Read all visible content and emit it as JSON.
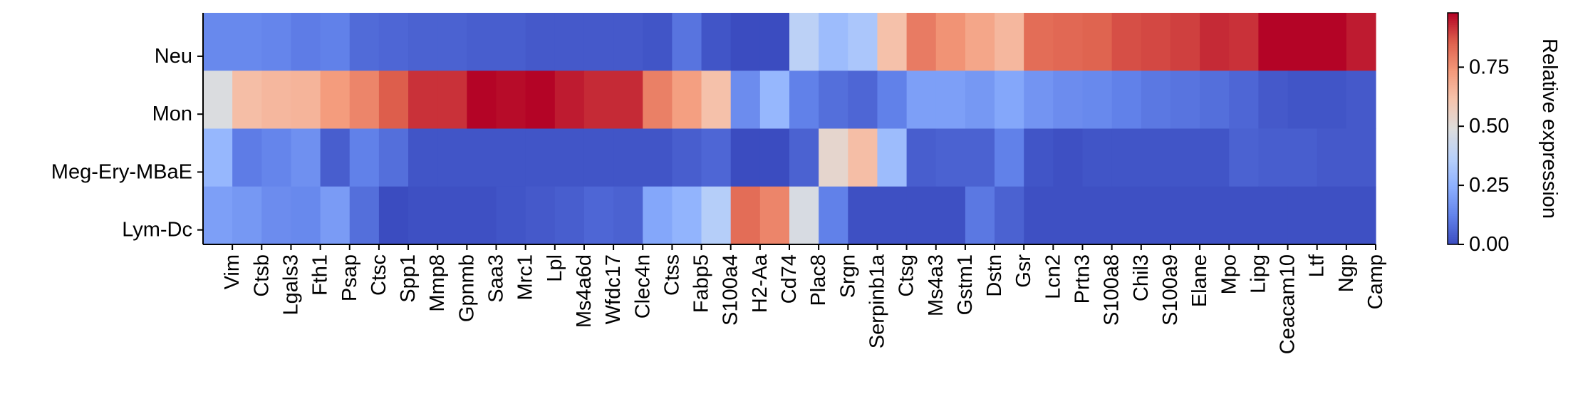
{
  "chart_data": {
    "type": "heatmap",
    "rows": [
      "Neu",
      "Mon",
      "Meg-Ery-MBaE",
      "Lym-Dc"
    ],
    "columns": [
      "Vim",
      "Ctsb",
      "Lgals3",
      "Fth1",
      "Psap",
      "Ctsc",
      "Spp1",
      "Mmp8",
      "Gpnmb",
      "Saa3",
      "Mrc1",
      "Lpl",
      "Ms4a6d",
      "Wfdc17",
      "Clec4n",
      "Ctss",
      "Fabp5",
      "S100a4",
      "H2-Aa",
      "Cd74",
      "Plac8",
      "Srgn",
      "Serpinb1a",
      "Ctsg",
      "Ms4a3",
      "Gstm1",
      "Dstn",
      "Gsr",
      "Lcn2",
      "Prtn3",
      "S100a8",
      "Chil3",
      "S100a9",
      "Elane",
      "Mpo",
      "Lipg",
      "Ceacam10",
      "Ltf",
      "Ngp",
      "Camp"
    ],
    "values": [
      [
        0.14,
        0.14,
        0.13,
        0.11,
        0.12,
        0.07,
        0.06,
        0.05,
        0.05,
        0.04,
        0.04,
        0.03,
        0.03,
        0.03,
        0.03,
        0.02,
        0.09,
        0.02,
        0.0,
        0.0,
        0.38,
        0.29,
        0.33,
        0.62,
        0.8,
        0.75,
        0.7,
        0.65,
        0.83,
        0.84,
        0.85,
        0.88,
        0.89,
        0.9,
        0.93,
        0.92,
        0.98,
        0.98,
        0.98,
        0.95
      ],
      [
        0.48,
        0.63,
        0.65,
        0.66,
        0.73,
        0.78,
        0.86,
        0.92,
        0.92,
        0.98,
        0.97,
        0.98,
        0.95,
        0.93,
        0.93,
        0.79,
        0.72,
        0.62,
        0.15,
        0.27,
        0.12,
        0.08,
        0.06,
        0.12,
        0.2,
        0.2,
        0.18,
        0.22,
        0.17,
        0.15,
        0.14,
        0.12,
        0.1,
        0.09,
        0.08,
        0.06,
        0.03,
        0.02,
        0.02,
        0.03
      ],
      [
        0.27,
        0.11,
        0.13,
        0.16,
        0.04,
        0.12,
        0.08,
        0.02,
        0.02,
        0.02,
        0.02,
        0.02,
        0.02,
        0.02,
        0.02,
        0.02,
        0.04,
        0.06,
        0.0,
        0.0,
        0.05,
        0.53,
        0.63,
        0.29,
        0.04,
        0.05,
        0.05,
        0.12,
        0.02,
        0.01,
        0.02,
        0.02,
        0.02,
        0.02,
        0.02,
        0.05,
        0.04,
        0.04,
        0.03,
        0.03
      ],
      [
        0.2,
        0.18,
        0.15,
        0.14,
        0.19,
        0.08,
        0.0,
        0.01,
        0.01,
        0.01,
        0.02,
        0.03,
        0.04,
        0.06,
        0.05,
        0.22,
        0.26,
        0.36,
        0.83,
        0.78,
        0.47,
        0.12,
        0.01,
        0.01,
        0.01,
        0.01,
        0.1,
        0.05,
        0.01,
        0.01,
        0.01,
        0.01,
        0.01,
        0.01,
        0.01,
        0.01,
        0.01,
        0.01,
        0.01,
        0.01
      ]
    ],
    "vmin": 0.0,
    "vmax": 0.98,
    "colormap": "coolwarm",
    "colorbar": {
      "label": "Relative expression",
      "ticks": [
        0.0,
        0.25,
        0.5,
        0.75
      ],
      "tick_labels": [
        "0.00",
        "0.25",
        "0.50",
        "0.75"
      ]
    }
  }
}
